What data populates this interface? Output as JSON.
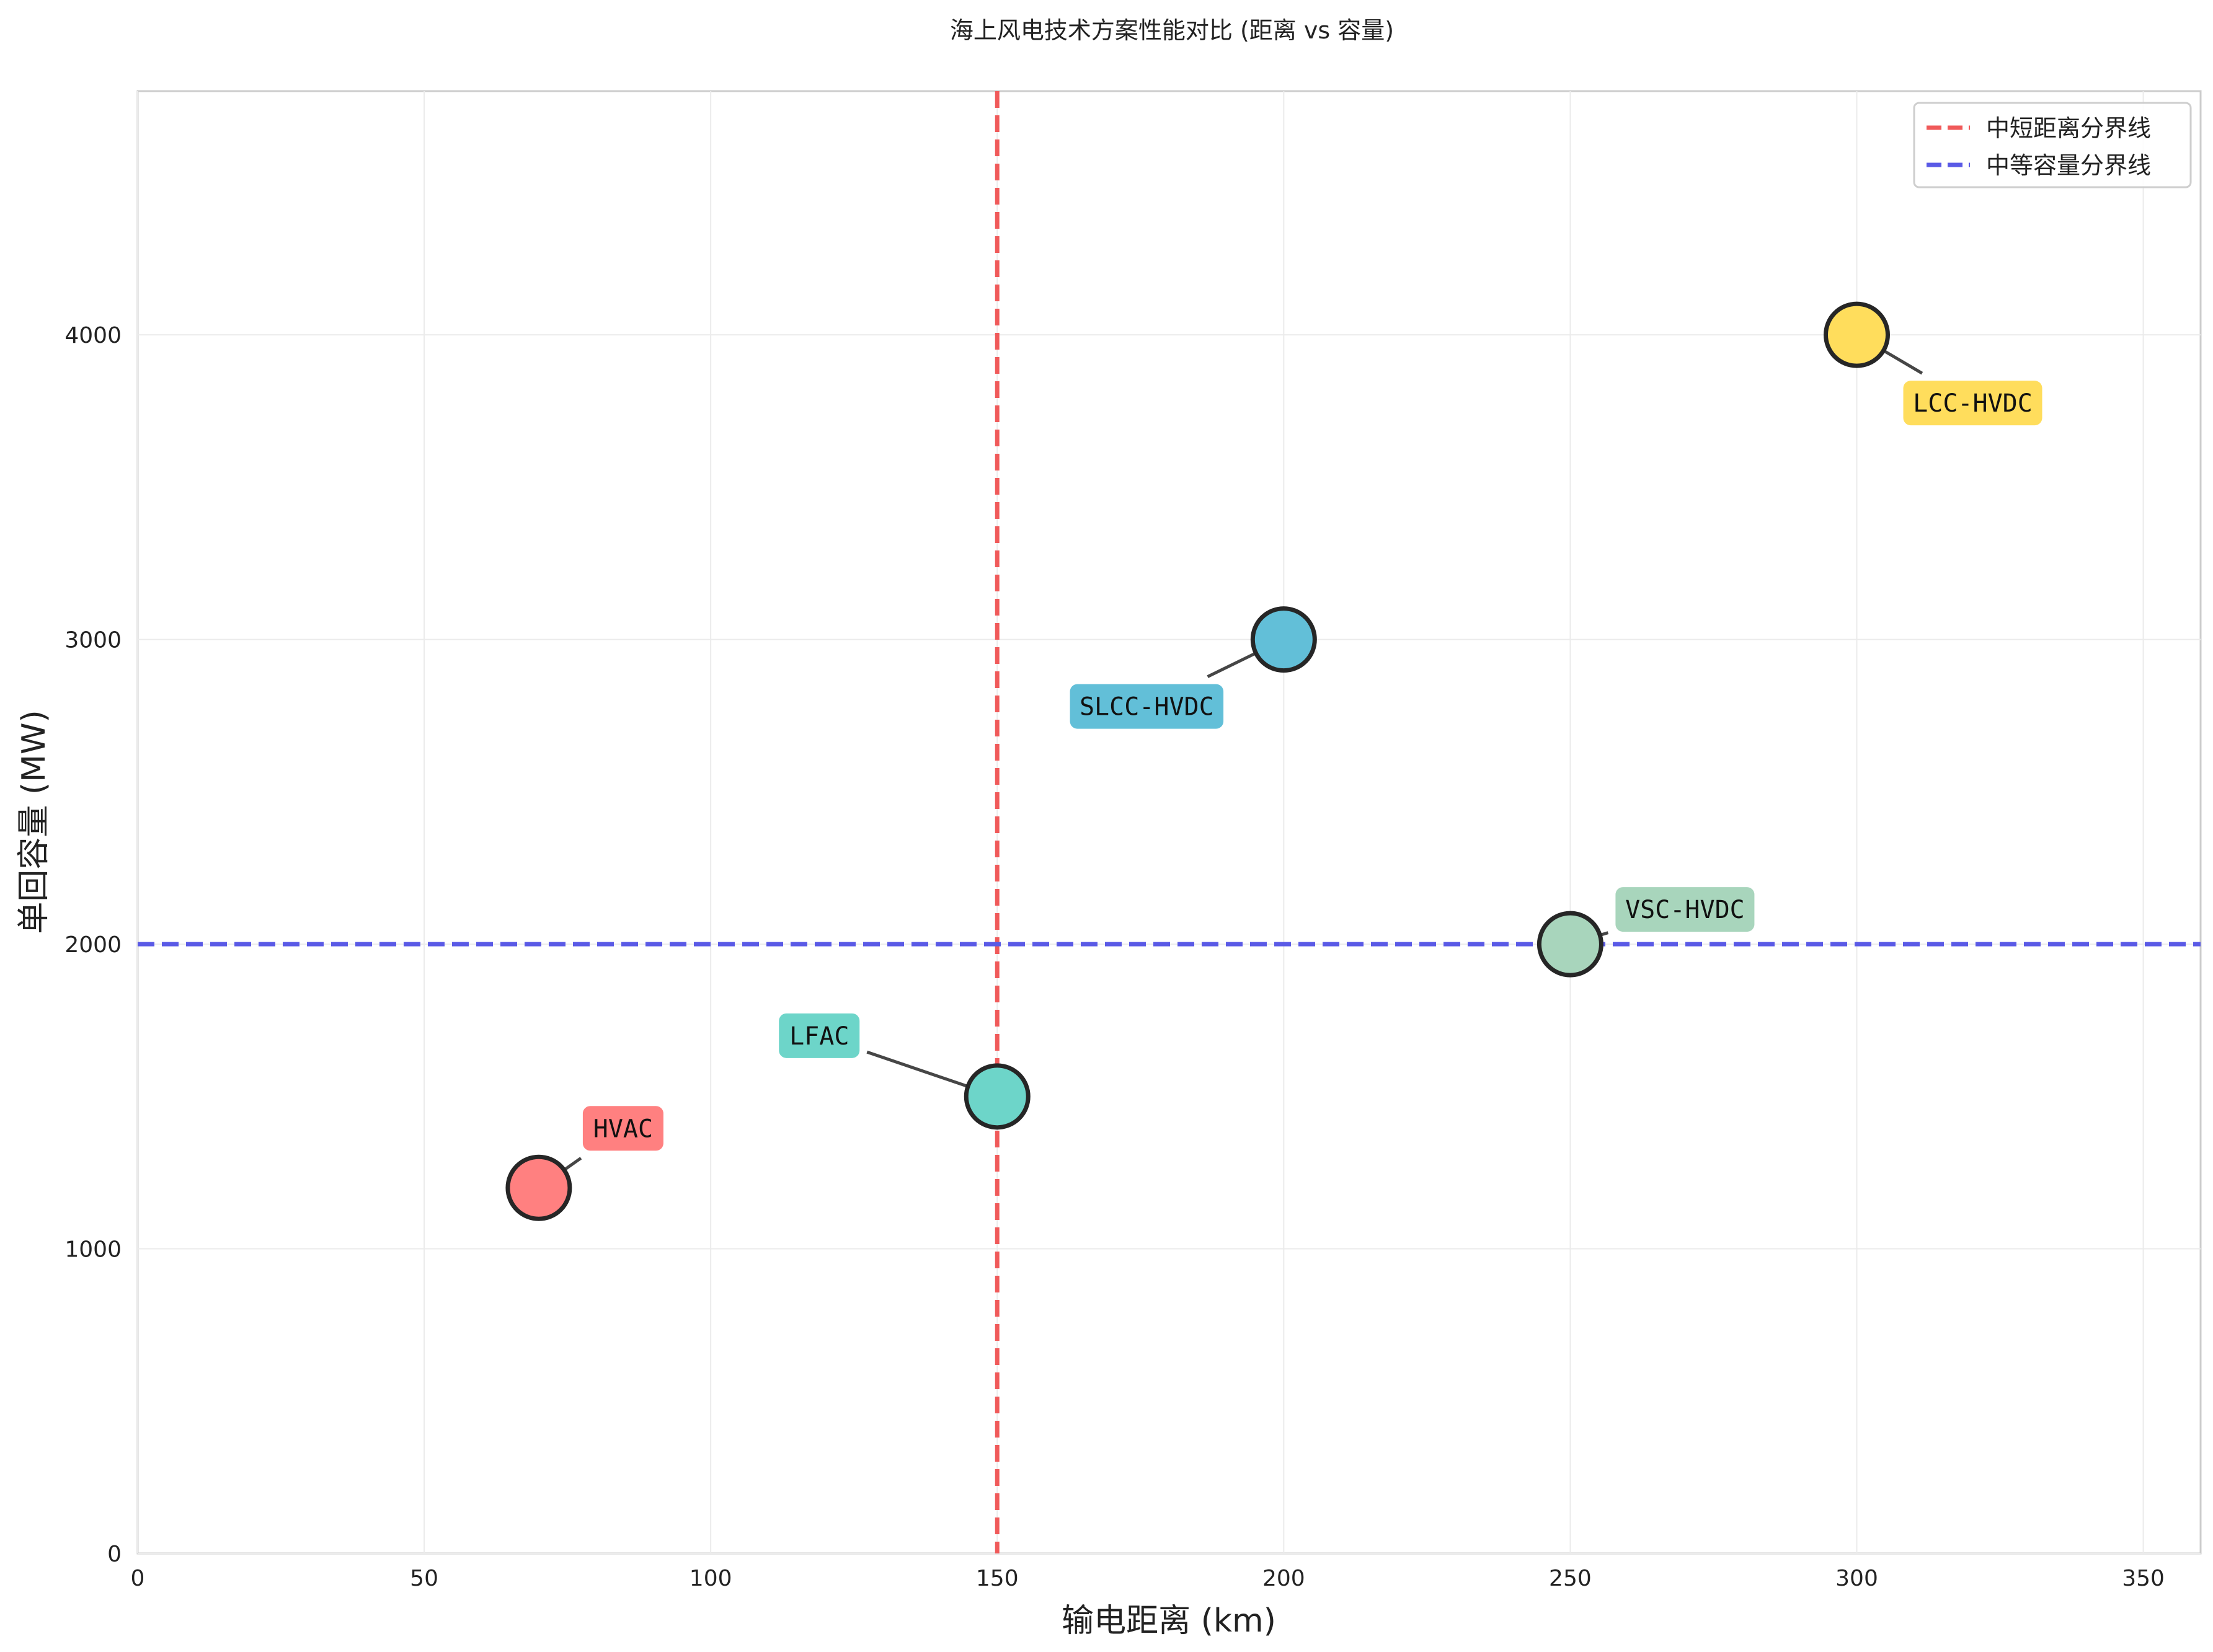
{
  "chart_data": {
    "type": "scatter",
    "title": "海上风电技术方案性能对比 (距离 vs 容量)",
    "xlabel": "输电距离 (km)",
    "ylabel": "单回容量 (MW)",
    "xlim": [
      0,
      360
    ],
    "ylim": [
      0,
      4800
    ],
    "x_ticks": [
      0,
      50,
      100,
      150,
      200,
      250,
      300,
      350
    ],
    "y_ticks": [
      0,
      1000,
      2000,
      3000,
      4000
    ],
    "grid": true,
    "legend_position": "top-right",
    "points": [
      {
        "label": "HVAC",
        "x": 70,
        "y": 1200,
        "color": "#FF8080"
      },
      {
        "label": "LFAC",
        "x": 150,
        "y": 1500,
        "color": "#6DD5C9"
      },
      {
        "label": "SLCC-HVDC",
        "x": 200,
        "y": 3000,
        "color": "#62BFD8"
      },
      {
        "label": "VSC-HVDC",
        "x": 250,
        "y": 2000,
        "color": "#A8D5BC"
      },
      {
        "label": "LCC-HVDC",
        "x": 300,
        "y": 4000,
        "color": "#FFDD5C"
      }
    ],
    "reference_lines": [
      {
        "name": "中短距离分界线",
        "orientation": "vertical",
        "value": 150,
        "color": "#F05A5A"
      },
      {
        "name": "中等容量分界线",
        "orientation": "horizontal",
        "value": 2000,
        "color": "#5A5AE6"
      }
    ]
  }
}
